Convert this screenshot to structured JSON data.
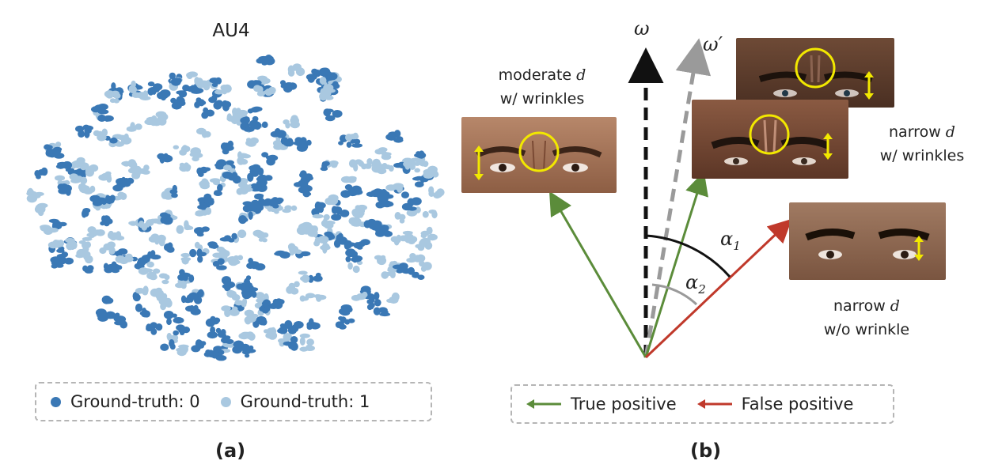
{
  "panel_a": {
    "title": "AU4",
    "legend": [
      {
        "label": "Ground-truth: 0",
        "color": "#3a78b5"
      },
      {
        "label": "Ground-truth: 1",
        "color": "#a9c8e0"
      }
    ],
    "caption": "(a)"
  },
  "panel_b": {
    "omega_label": "ω",
    "omega_prime_label": "ω′",
    "alpha1_label": "α",
    "alpha1_sub": "1",
    "alpha2_label": "α",
    "alpha2_sub": "2",
    "face_top_left": {
      "line1": "moderate",
      "var": "d",
      "line2": "w/ wrinkles"
    },
    "face_right_mid": {
      "line1": "narrow",
      "var": "d",
      "line2": "w/ wrinkles"
    },
    "face_right_low": {
      "line1": "narrow",
      "var": "d",
      "line2": "w/o wrinkle"
    },
    "legend": [
      {
        "label": "True positive",
        "color": "#5b8c3a"
      },
      {
        "label": "False positive",
        "color": "#c0392b"
      }
    ],
    "caption": "(b)",
    "colors": {
      "true_positive": "#5b8c3a",
      "false_positive": "#c0392b",
      "omega": "#111111",
      "omega_prime": "#9a9a9a",
      "highlight": "#f2e800"
    }
  }
}
